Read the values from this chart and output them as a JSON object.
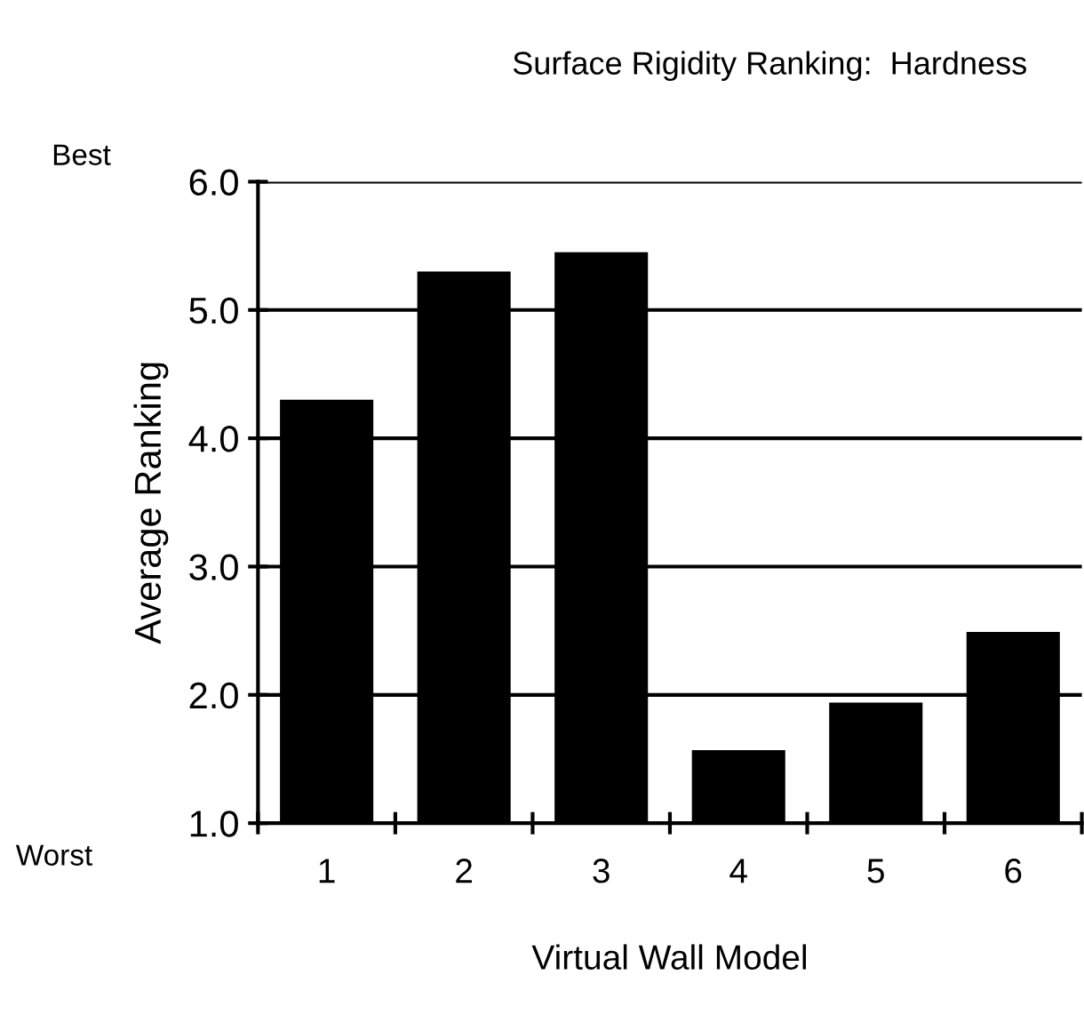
{
  "chart_data": {
    "type": "bar",
    "title": "Surface Rigidity Ranking:  Hardness",
    "xlabel": "Virtual Wall Model",
    "ylabel": "Average Ranking",
    "categories": [
      "1",
      "2",
      "3",
      "4",
      "5",
      "6"
    ],
    "values": [
      4.3,
      5.3,
      5.45,
      1.57,
      1.94,
      2.49
    ],
    "color": "#000000",
    "ylim": [
      1.0,
      6.0
    ],
    "yticks": [
      {
        "value": 1,
        "label": "1.0"
      },
      {
        "value": 2,
        "label": "2.0"
      },
      {
        "value": 3,
        "label": "3.0"
      },
      {
        "value": 4,
        "label": "4.0"
      },
      {
        "value": 5,
        "label": "5.0"
      },
      {
        "value": 6,
        "label": "6.0"
      }
    ],
    "grid": "y",
    "legend": false,
    "annotations": [
      "Best",
      "Worst"
    ]
  }
}
